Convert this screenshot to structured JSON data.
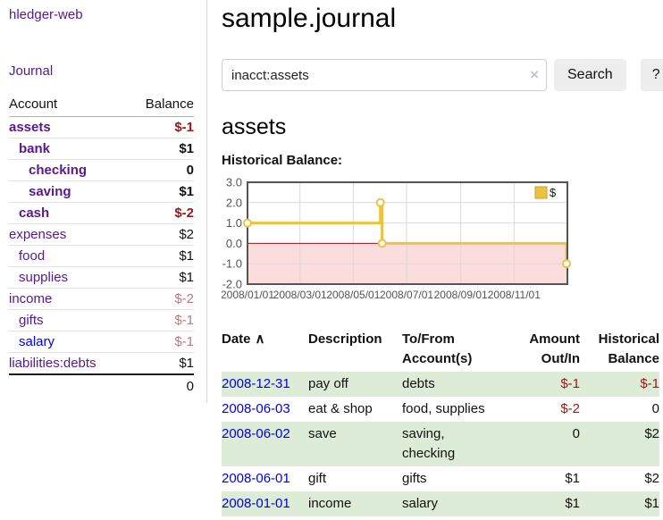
{
  "sidebar": {
    "app_title": "hledger-web",
    "journal_link": "Journal",
    "accounts_table": {
      "account_header": "Account",
      "balance_header": "Balance",
      "rows": [
        {
          "name": "assets",
          "depth": 0,
          "bold": true,
          "balance": "$-1",
          "negative": true
        },
        {
          "name": "bank",
          "depth": 1,
          "bold": true,
          "balance": "$1",
          "negative": false
        },
        {
          "name": "checking",
          "depth": 2,
          "bold": true,
          "balance": "0",
          "negative": false
        },
        {
          "name": "saving",
          "depth": 2,
          "bold": true,
          "balance": "$1",
          "negative": false
        },
        {
          "name": "cash",
          "depth": 1,
          "bold": true,
          "balance": "$-2",
          "negative": true
        },
        {
          "name": "expenses",
          "depth": 0,
          "bold": false,
          "balance": "$2",
          "negative": false
        },
        {
          "name": "food",
          "depth": 1,
          "bold": false,
          "balance": "$1",
          "negative": false
        },
        {
          "name": "supplies",
          "depth": 1,
          "bold": false,
          "balance": "$1",
          "negative": false
        },
        {
          "name": "income",
          "depth": 0,
          "bold": false,
          "balance": "$-2",
          "negative": true
        },
        {
          "name": "gifts",
          "depth": 1,
          "bold": false,
          "balance": "$-1",
          "negative": true
        },
        {
          "name": "salary",
          "depth": 1,
          "bold": false,
          "balance": "$-1",
          "negative": true,
          "unvisited_link": true
        },
        {
          "name": "liabilities:debts",
          "depth": 0,
          "bold": false,
          "balance": "$1",
          "negative": false
        }
      ],
      "total": "0"
    }
  },
  "main": {
    "title": "sample.journal",
    "search": {
      "query": "inacct:assets",
      "clear_icon": "×",
      "search_button": "Search",
      "help_button": "?"
    },
    "account_heading": "assets",
    "chart_title": "Historical Balance:"
  },
  "chart_data": {
    "type": "line",
    "step": true,
    "title": "Historical Balance",
    "xlim": [
      "2008-01-01",
      "2009-01-01"
    ],
    "ylim": [
      -2,
      3
    ],
    "x_ticks": [
      {
        "pos": "2008-01-01",
        "label": "2008/01/01"
      },
      {
        "pos": "2008-03-01",
        "label": "2008/03/01"
      },
      {
        "pos": "2008-05-01",
        "label": "2008/05/01"
      },
      {
        "pos": "2008-07-01",
        "label": "2008/07/01"
      },
      {
        "pos": "2008-09-01",
        "label": "2008/09/01"
      },
      {
        "pos": "2008-11-01",
        "label": "2008/11/01"
      }
    ],
    "y_ticks": [
      {
        "pos": 3,
        "label": "3.0"
      },
      {
        "pos": 2,
        "label": "2.0"
      },
      {
        "pos": 1,
        "label": "1.0"
      },
      {
        "pos": 0,
        "label": "0.0"
      },
      {
        "pos": -1,
        "label": "-1.0"
      },
      {
        "pos": -2,
        "label": "-2.0"
      }
    ],
    "series": [
      {
        "name": "$",
        "color": "#edc240",
        "points": [
          [
            "2008-01-01",
            1
          ],
          [
            "2008-06-01",
            2
          ],
          [
            "2008-06-03",
            0
          ],
          [
            "2008-12-31",
            -1
          ]
        ]
      }
    ],
    "legend_position": "top-right",
    "grid": true,
    "grid_color": "#d9d9d9",
    "border_color": "#545454",
    "negative_region_fill": "#fbdddd",
    "zero_line_color": "#941717",
    "axis_text_color": "#545454"
  },
  "register_table": {
    "columns": {
      "date": "Date",
      "sort_icon": "∧",
      "description": "Description",
      "accounts": "To/From\nAccount(s)",
      "amount": "Amount\nOut/In",
      "balance": "Historical\nBalance"
    },
    "rows": [
      {
        "date": "2008-12-31",
        "description": "pay off",
        "accounts": "debts",
        "amount": "$-1",
        "amount_negative": true,
        "balance": "$-1",
        "balance_negative": true
      },
      {
        "date": "2008-06-03",
        "description": "eat & shop",
        "accounts": "food, supplies",
        "amount": "$-2",
        "amount_negative": true,
        "balance": "0",
        "balance_negative": false
      },
      {
        "date": "2008-06-02",
        "description": "save",
        "accounts": "saving,\nchecking",
        "amount": "0",
        "amount_negative": false,
        "balance": "$2",
        "balance_negative": false
      },
      {
        "date": "2008-06-01",
        "description": "gift",
        "accounts": "gifts",
        "amount": "$1",
        "amount_negative": false,
        "balance": "$2",
        "balance_negative": false
      },
      {
        "date": "2008-01-01",
        "description": "income",
        "accounts": "salary",
        "amount": "$1",
        "amount_negative": false,
        "balance": "$1",
        "balance_negative": false
      }
    ]
  }
}
